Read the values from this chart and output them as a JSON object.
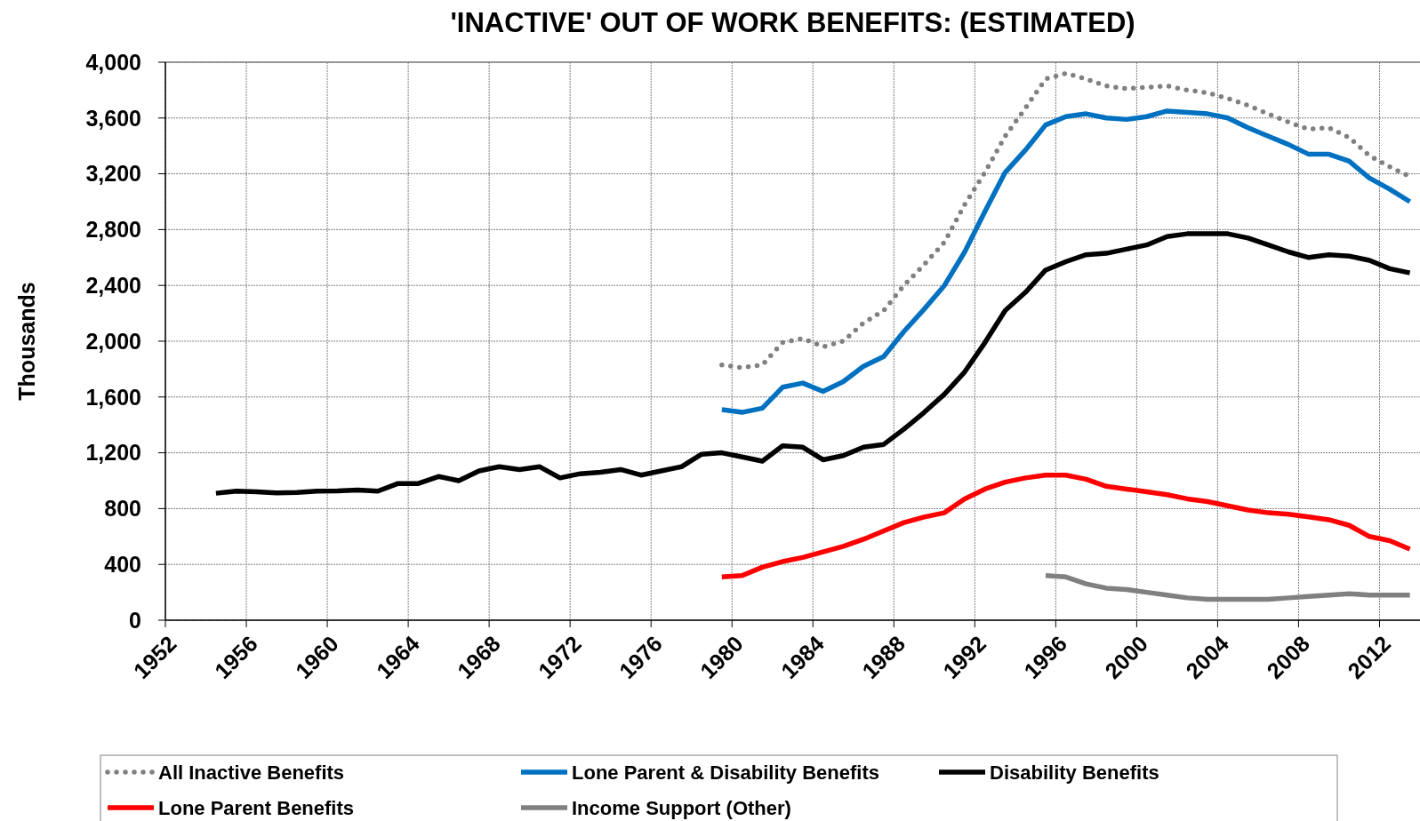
{
  "chart_data": {
    "type": "line",
    "title": "'INACTIVE' OUT OF WORK BENEFITS: (ESTIMATED)",
    "ylabel": "Thousands",
    "xlim": [
      1952,
      2014
    ],
    "xticks": [
      1952,
      1956,
      1960,
      1964,
      1968,
      1972,
      1976,
      1980,
      1984,
      1988,
      1992,
      1996,
      2000,
      2004,
      2008,
      2012
    ],
    "ylim": [
      0,
      4000
    ],
    "yticks": [
      {
        "value": 0,
        "label": "0"
      },
      {
        "value": 400,
        "label": "400"
      },
      {
        "value": 800,
        "label": "800"
      },
      {
        "value": 1200,
        "label": "1,200"
      },
      {
        "value": 1600,
        "label": "1,600"
      },
      {
        "value": 2000,
        "label": "2,000"
      },
      {
        "value": 2400,
        "label": "2,400"
      },
      {
        "value": 2800,
        "label": "2,800"
      },
      {
        "value": 3200,
        "label": "3,200"
      },
      {
        "value": 3600,
        "label": "3,600"
      },
      {
        "value": 4000,
        "label": "4,000"
      }
    ],
    "grid": true,
    "legend": "bottom",
    "series": [
      {
        "name": "All Inactive Benefits",
        "color": "#808080",
        "line_style": "dotted",
        "x": [
          1979.5,
          1980.5,
          1981.5,
          1982.5,
          1983.5,
          1984.5,
          1985.5,
          1986.5,
          1987.5,
          1988.5,
          1989.5,
          1990.5,
          1991.5,
          1992.5,
          1993.5,
          1994.5,
          1995.5,
          1996.5,
          1997.5,
          1998.5,
          1999.5,
          2000.5,
          2001.5,
          2002.5,
          2003.5,
          2004.5,
          2005.5,
          2006.5,
          2007.5,
          2008.5,
          2009.5,
          2010.5,
          2011.5,
          2012.5,
          2013.5
        ],
        "values": [
          1830,
          1810,
          1830,
          1990,
          2020,
          1960,
          2000,
          2130,
          2220,
          2400,
          2550,
          2710,
          2980,
          3210,
          3470,
          3670,
          3880,
          3920,
          3880,
          3830,
          3810,
          3820,
          3830,
          3800,
          3780,
          3740,
          3690,
          3630,
          3570,
          3520,
          3530,
          3460,
          3330,
          3250,
          3180
        ]
      },
      {
        "name": "Lone Parent & Disability Benefits",
        "color": "#0070c0",
        "line_style": "solid",
        "x": [
          1979.5,
          1980.5,
          1981.5,
          1982.5,
          1983.5,
          1984.5,
          1985.5,
          1986.5,
          1987.5,
          1988.5,
          1989.5,
          1990.5,
          1991.5,
          1992.5,
          1993.5,
          1994.5,
          1995.5,
          1996.5,
          1997.5,
          1998.5,
          1999.5,
          2000.5,
          2001.5,
          2002.5,
          2003.5,
          2004.5,
          2005.5,
          2006.5,
          2007.5,
          2008.5,
          2009.5,
          2010.5,
          2011.5,
          2012.5,
          2013.5
        ],
        "values": [
          1510,
          1490,
          1520,
          1670,
          1700,
          1640,
          1710,
          1820,
          1890,
          2070,
          2230,
          2400,
          2640,
          2930,
          3210,
          3370,
          3550,
          3610,
          3630,
          3600,
          3590,
          3610,
          3650,
          3640,
          3630,
          3600,
          3530,
          3470,
          3410,
          3340,
          3340,
          3290,
          3170,
          3090,
          3000
        ]
      },
      {
        "name": "Disability Benefits",
        "color": "#000000",
        "line_style": "solid",
        "x": [
          1954.5,
          1955.5,
          1956.5,
          1957.5,
          1958.5,
          1959.5,
          1960.5,
          1961.5,
          1962.5,
          1963.5,
          1964.5,
          1965.5,
          1966.5,
          1967.5,
          1968.5,
          1969.5,
          1970.5,
          1971.5,
          1972.5,
          1973.5,
          1974.5,
          1975.5,
          1976.5,
          1977.5,
          1978.5,
          1979.5,
          1980.5,
          1981.5,
          1982.5,
          1983.5,
          1984.5,
          1985.5,
          1986.5,
          1987.5,
          1988.5,
          1989.5,
          1990.5,
          1991.5,
          1992.5,
          1993.5,
          1994.5,
          1995.5,
          1996.5,
          1997.5,
          1998.5,
          1999.5,
          2000.5,
          2001.5,
          2002.5,
          2003.5,
          2004.5,
          2005.5,
          2006.5,
          2007.5,
          2008.5,
          2009.5,
          2010.5,
          2011.5,
          2012.5,
          2013.5
        ],
        "values": [
          910,
          925,
          920,
          913,
          916,
          925,
          927,
          933,
          925,
          980,
          980,
          1030,
          1000,
          1070,
          1100,
          1080,
          1100,
          1020,
          1050,
          1060,
          1080,
          1040,
          1070,
          1100,
          1190,
          1200,
          1170,
          1140,
          1250,
          1240,
          1150,
          1180,
          1240,
          1260,
          1370,
          1490,
          1620,
          1780,
          1990,
          2220,
          2350,
          2510,
          2570,
          2620,
          2630,
          2660,
          2690,
          2750,
          2770,
          2770,
          2770,
          2740,
          2690,
          2640,
          2600,
          2620,
          2610,
          2580,
          2520,
          2490
        ]
      },
      {
        "name": "Lone Parent Benefits",
        "color": "#ff0000",
        "line_style": "solid",
        "x": [
          1979.5,
          1980.5,
          1981.5,
          1982.5,
          1983.5,
          1984.5,
          1985.5,
          1986.5,
          1987.5,
          1988.5,
          1989.5,
          1990.5,
          1991.5,
          1992.5,
          1993.5,
          1994.5,
          1995.5,
          1996.5,
          1997.5,
          1998.5,
          1999.5,
          2000.5,
          2001.5,
          2002.5,
          2003.5,
          2004.5,
          2005.5,
          2006.5,
          2007.5,
          2008.5,
          2009.5,
          2010.5,
          2011.5,
          2012.5,
          2013.5
        ],
        "values": [
          310,
          320,
          380,
          420,
          450,
          490,
          530,
          580,
          640,
          700,
          740,
          770,
          870,
          940,
          990,
          1020,
          1040,
          1040,
          1010,
          960,
          940,
          920,
          900,
          870,
          850,
          820,
          790,
          770,
          760,
          740,
          720,
          680,
          600,
          570,
          510
        ]
      },
      {
        "name": "Income Support (Other)",
        "color": "#808080",
        "line_style": "solid",
        "x": [
          1995.5,
          1996.5,
          1997.5,
          1998.5,
          1999.5,
          2000.5,
          2001.5,
          2002.5,
          2003.5,
          2004.5,
          2005.5,
          2006.5,
          2007.5,
          2008.5,
          2009.5,
          2010.5,
          2011.5,
          2012.5,
          2013.5
        ],
        "values": [
          320,
          310,
          260,
          230,
          220,
          200,
          180,
          160,
          150,
          150,
          150,
          150,
          160,
          170,
          180,
          190,
          180,
          180,
          180
        ]
      }
    ]
  }
}
